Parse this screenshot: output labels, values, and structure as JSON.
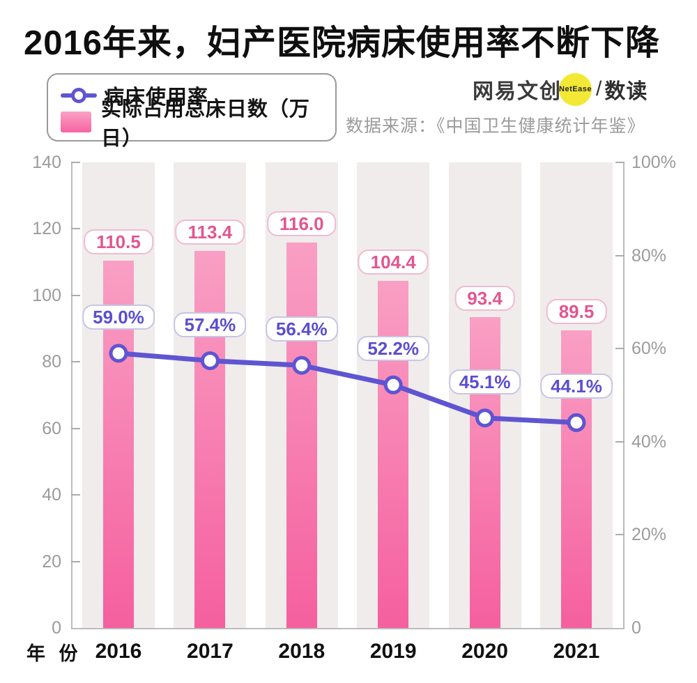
{
  "title": "2016年来，妇产医院病床使用率不断下降",
  "legend": {
    "line_label": "病床使用率",
    "bar_label": "实际占用总床日数（万日）"
  },
  "branding": {
    "brand_text": "网易文创",
    "badge_text": "NetEase",
    "separator": "/",
    "sub_brand": "数读",
    "source": "数据来源：《中国卫生健康统计年鉴》"
  },
  "axes": {
    "x_title": "年 份",
    "left_tick_labels": [
      "140",
      "120",
      "100",
      "80",
      "60",
      "40",
      "20",
      "0"
    ],
    "right_tick_labels": [
      "100%",
      "80%",
      "60%",
      "40%",
      "20%",
      "0"
    ]
  },
  "colors": {
    "line": "#5f54d2",
    "bar_top": "#f99fc4",
    "bar_bottom": "#f55f9e",
    "band": "#efeceb",
    "value_text": "#e25590",
    "percent_text": "#5b4ed0",
    "badge_yellow": "#f3e935",
    "axis_gray": "#9b9b9b"
  },
  "chart_data": {
    "type": "bar+line combo",
    "categories": [
      "2016",
      "2017",
      "2018",
      "2019",
      "2020",
      "2021"
    ],
    "series": [
      {
        "name": "实际占用总床日数（万日）",
        "type": "bar",
        "axis": "left",
        "values": [
          110.5,
          113.4,
          116.0,
          104.4,
          93.4,
          89.5
        ]
      },
      {
        "name": "病床使用率",
        "type": "line",
        "axis": "right",
        "unit": "%",
        "values": [
          59.0,
          57.4,
          56.4,
          52.2,
          45.1,
          44.1
        ]
      }
    ],
    "left_axis": {
      "min": 0,
      "max": 140,
      "step": 20
    },
    "right_axis": {
      "min": 0,
      "max": 100,
      "step": 20,
      "format": "percent"
    },
    "grid": false,
    "legend_position": "top-left",
    "data_labels": true
  }
}
